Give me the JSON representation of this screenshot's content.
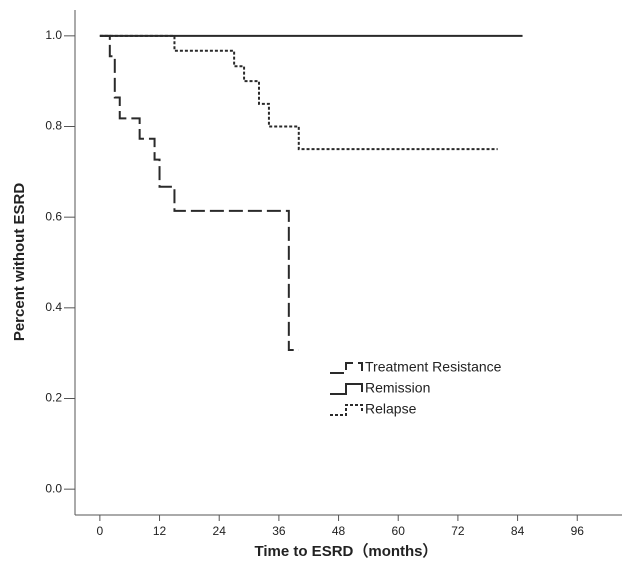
{
  "chart_data": {
    "type": "step",
    "xlabel": "Time to ESRD（months）",
    "ylabel": "Percent without ESRD",
    "xlim": [
      -5,
      105
    ],
    "ylim": [
      -0.057,
      1.057
    ],
    "xticks": [
      0,
      12,
      24,
      36,
      48,
      60,
      72,
      84,
      96
    ],
    "yticks": [
      {
        "value": 0,
        "label": "0.0"
      },
      {
        "value": 0.2,
        "label": "0.2"
      },
      {
        "value": 0.4,
        "label": "0.4"
      },
      {
        "value": 0.6,
        "label": "0.6"
      },
      {
        "value": 0.8,
        "label": "0.8"
      },
      {
        "value": 1,
        "label": "1.0"
      }
    ],
    "series": [
      {
        "name": "Treatment Resistance",
        "color": "#2a2a2a",
        "dash": "14,5",
        "x": [
          0,
          2,
          3,
          4,
          8,
          11,
          12,
          15,
          38,
          40
        ],
        "values": [
          1,
          0.955,
          0.864,
          0.818,
          0.773,
          0.727,
          0.667,
          0.614,
          0.307,
          0.307
        ]
      },
      {
        "name": "Remission",
        "color": "#2a2a2a",
        "dash": "none",
        "x": [
          0,
          85
        ],
        "values": [
          1,
          1
        ]
      },
      {
        "name": "Relapse",
        "color": "#2a2a2a",
        "dash": "3,2",
        "x": [
          0,
          15,
          27,
          29,
          32,
          34,
          40,
          80
        ],
        "values": [
          1,
          0.967,
          0.933,
          0.9,
          0.85,
          0.8,
          0.75,
          0.75
        ]
      }
    ]
  }
}
